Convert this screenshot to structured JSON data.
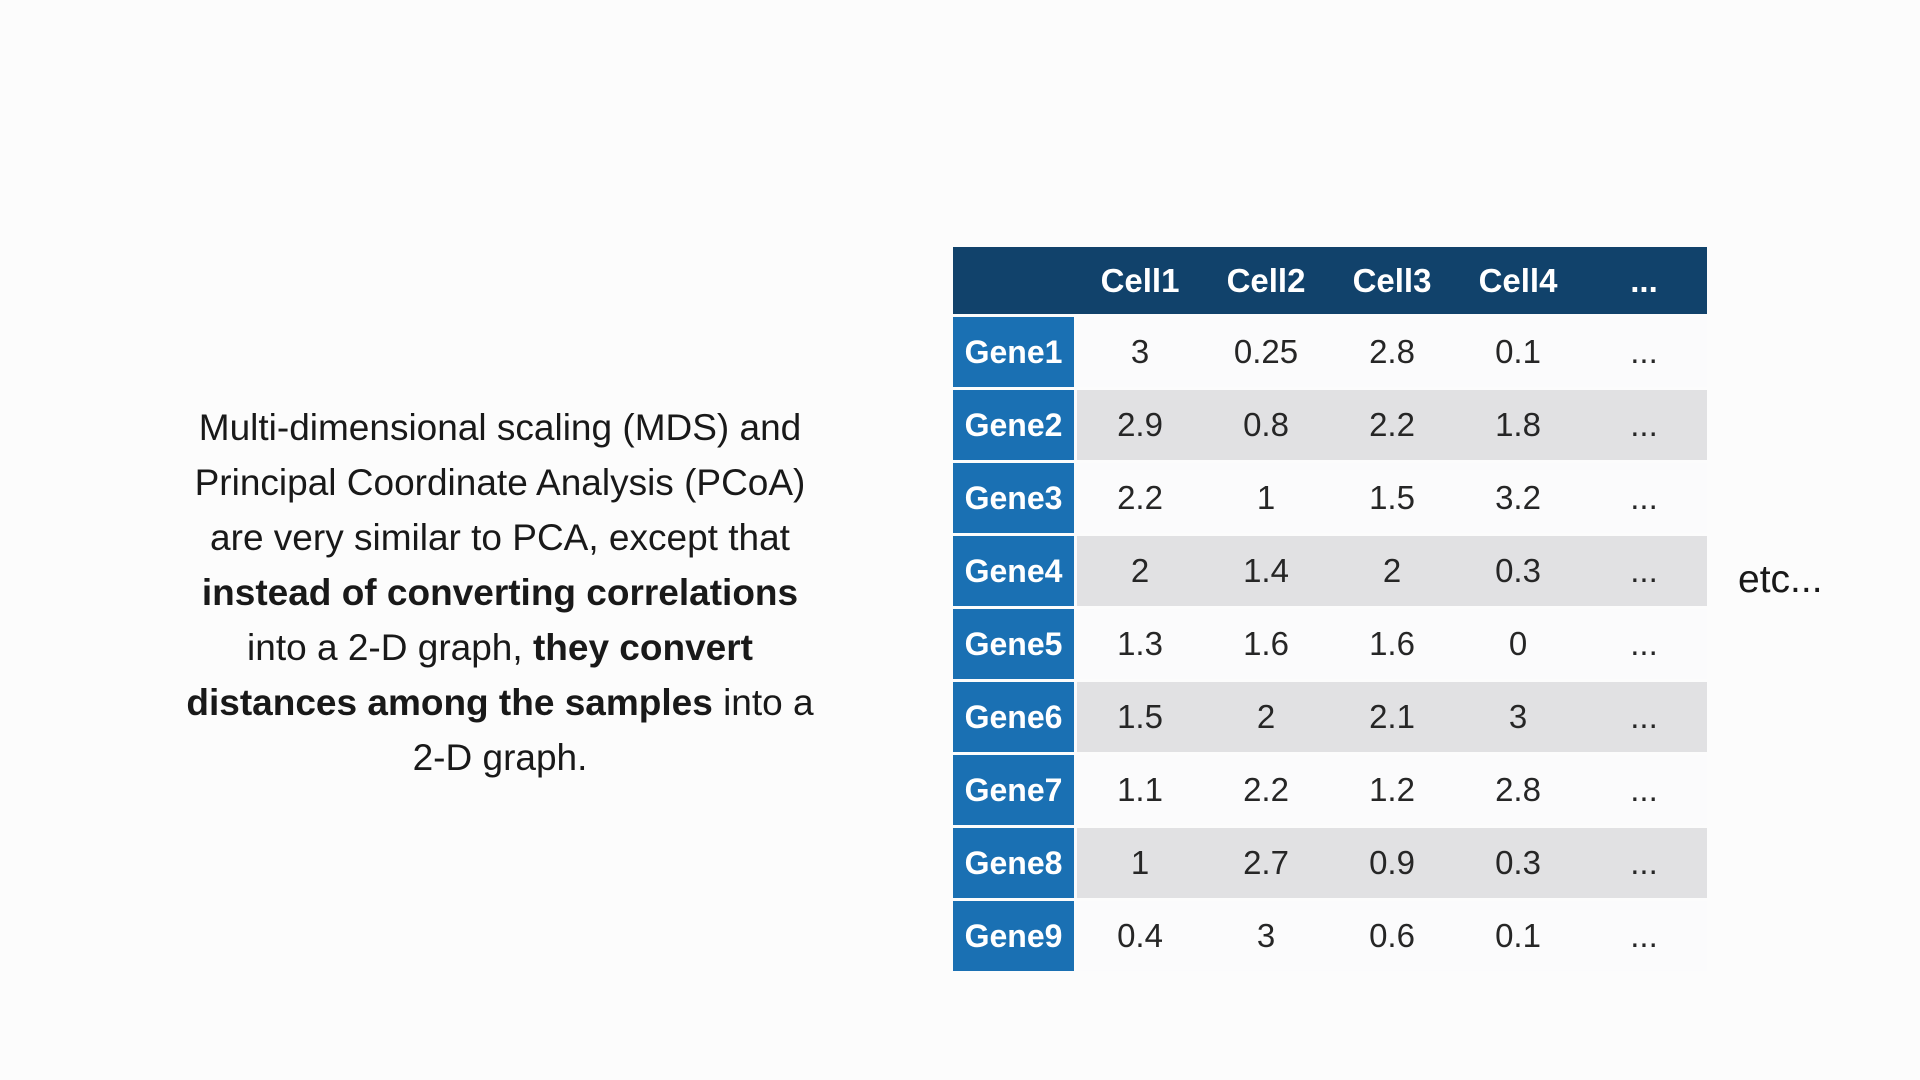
{
  "slide": {
    "paragraph": {
      "lines": [
        [
          {
            "t": "Multi-dimensional scaling (MDS) and",
            "b": false
          }
        ],
        [
          {
            "t": "Principal Coordinate Analysis (PCoA)",
            "b": false
          }
        ],
        [
          {
            "t": "are very similar to PCA, except that",
            "b": false
          }
        ],
        [
          {
            "t": "instead of converting correlations",
            "b": true
          }
        ],
        [
          {
            "t": "into a 2-D graph, ",
            "b": false
          },
          {
            "t": "they convert",
            "b": true
          }
        ],
        [
          {
            "t": "distances among the samples",
            "b": true
          },
          {
            "t": " into a",
            "b": false
          }
        ],
        [
          {
            "t": "2-D graph.",
            "b": false
          }
        ]
      ]
    },
    "etc_label": "etc...",
    "table": {
      "corner": "",
      "columns": [
        "Cell1",
        "Cell2",
        "Cell3",
        "Cell4",
        "..."
      ],
      "rows": [
        {
          "label": "Gene1",
          "values": [
            "3",
            "0.25",
            "2.8",
            "0.1",
            "..."
          ]
        },
        {
          "label": "Gene2",
          "values": [
            "2.9",
            "0.8",
            "2.2",
            "1.8",
            "..."
          ]
        },
        {
          "label": "Gene3",
          "values": [
            "2.2",
            "1",
            "1.5",
            "3.2",
            "..."
          ]
        },
        {
          "label": "Gene4",
          "values": [
            "2",
            "1.4",
            "2",
            "0.3",
            "..."
          ]
        },
        {
          "label": "Gene5",
          "values": [
            "1.3",
            "1.6",
            "1.6",
            "0",
            "..."
          ]
        },
        {
          "label": "Gene6",
          "values": [
            "1.5",
            "2",
            "2.1",
            "3",
            "..."
          ]
        },
        {
          "label": "Gene7",
          "values": [
            "1.1",
            "2.2",
            "1.2",
            "2.8",
            "..."
          ]
        },
        {
          "label": "Gene8",
          "values": [
            "1",
            "2.7",
            "0.9",
            "0.3",
            "..."
          ]
        },
        {
          "label": "Gene9",
          "values": [
            "0.4",
            "3",
            "0.6",
            "0.1",
            "..."
          ]
        }
      ]
    }
  },
  "colors": {
    "background": "#fcfcfc",
    "header_bg": "#11426b",
    "gene_bg": "#1a70b3",
    "stripe_gray": "#e1e1e3",
    "stripe_white": "#fbfbfc",
    "text_dark": "#191919",
    "value_text": "#262626"
  }
}
